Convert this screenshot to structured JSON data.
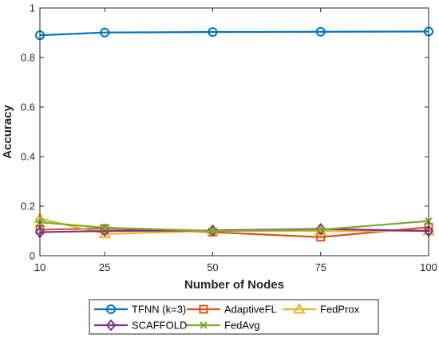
{
  "chart_data": {
    "type": "line",
    "xlabel": "Number of Nodes",
    "ylabel": "Accuracy",
    "x": [
      10,
      25,
      50,
      75,
      100
    ],
    "xticks": [
      "10",
      "25",
      "50",
      "75",
      "100"
    ],
    "yticks": [
      "0",
      "0.2",
      "0.4",
      "0.6",
      "0.8",
      "1"
    ],
    "xlim": [
      10,
      100
    ],
    "ylim": [
      0,
      1
    ],
    "grid": false,
    "legend_position": "bottom-outside",
    "series": [
      {
        "name": "TFNN (k=3)",
        "color": "#0072BD",
        "marker": "circle",
        "values": [
          0.89,
          0.901,
          0.903,
          0.904,
          0.905
        ]
      },
      {
        "name": "AdaptiveFL",
        "color": "#D95319",
        "marker": "square",
        "values": [
          0.105,
          0.11,
          0.095,
          0.075,
          0.115
        ]
      },
      {
        "name": "FedProx",
        "color": "#EDB120",
        "marker": "triangle",
        "values": [
          0.15,
          0.088,
          0.1,
          0.1,
          0.1
        ]
      },
      {
        "name": "SCAFFOLD",
        "color": "#7E2F8E",
        "marker": "diamond",
        "values": [
          0.095,
          0.1,
          0.102,
          0.108,
          0.1
        ]
      },
      {
        "name": "FedAvg",
        "color": "#77AC30",
        "marker": "x",
        "values": [
          0.135,
          0.113,
          0.1,
          0.105,
          0.14
        ]
      }
    ]
  }
}
